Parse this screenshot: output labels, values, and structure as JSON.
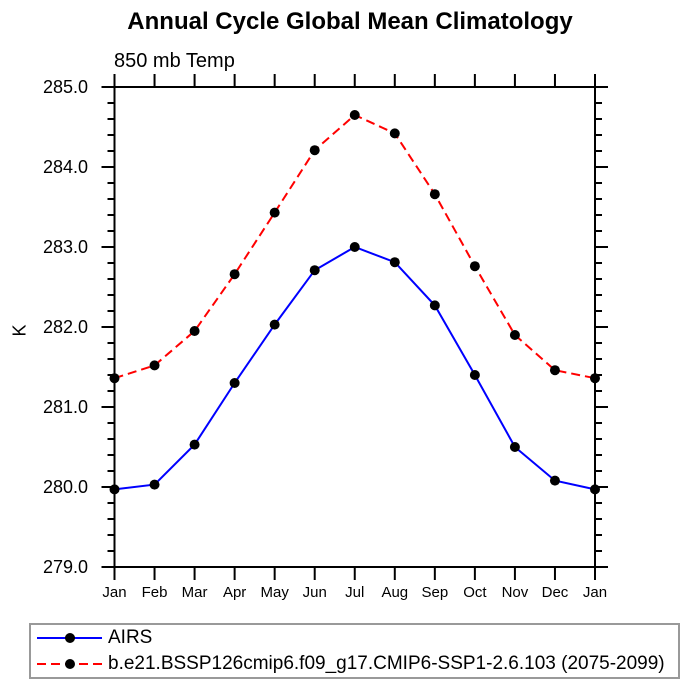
{
  "chart_data": {
    "type": "line",
    "title": "Annual Cycle Global Mean Climatology",
    "subtitle": "850 mb Temp",
    "ylabel": "K",
    "x_categories": [
      "Jan",
      "Feb",
      "Mar",
      "Apr",
      "May",
      "Jun",
      "Jul",
      "Aug",
      "Sep",
      "Oct",
      "Nov",
      "Dec",
      "Jan"
    ],
    "ylim": [
      279.0,
      285.0
    ],
    "ytick_step": 1.0,
    "ytick_minor_step": 0.2,
    "ytick_label_format": "one_decimal",
    "grid": false,
    "legend_position": "bottom-left",
    "series": [
      {
        "name": "AIRS",
        "color": "#0000ff",
        "line_style": "solid",
        "marker": "filled-circle",
        "marker_color": "#000000",
        "values": [
          279.97,
          280.03,
          280.53,
          281.3,
          282.03,
          282.71,
          283.0,
          282.81,
          282.27,
          281.4,
          280.5,
          280.08,
          279.97
        ]
      },
      {
        "name": "b.e21.BSSP126cmip6.f09_g17.CMIP6-SSP1-2.6.103 (2075-2099)",
        "color": "#ff0000",
        "line_style": "dashed",
        "marker": "filled-circle",
        "marker_color": "#000000",
        "values": [
          281.36,
          281.52,
          281.95,
          282.66,
          283.43,
          284.21,
          284.65,
          284.42,
          283.66,
          282.76,
          281.9,
          281.46,
          281.36
        ]
      }
    ]
  },
  "colors": {
    "axis": "#000000",
    "text": "#000000",
    "legend_border": "#999999",
    "background": "#ffffff"
  }
}
